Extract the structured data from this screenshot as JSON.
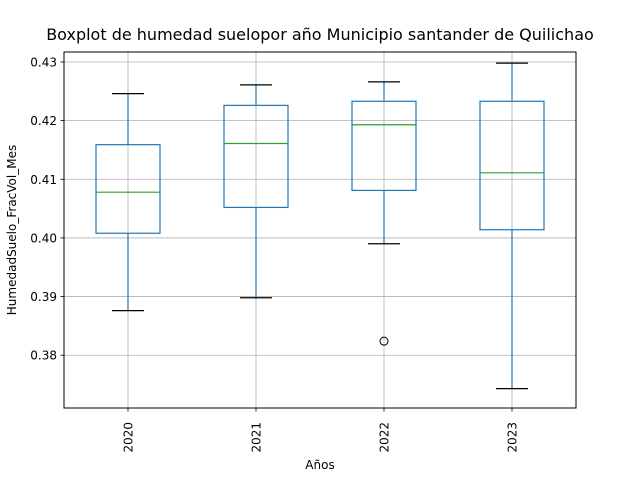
{
  "chart_data": {
    "type": "boxplot",
    "title": "Boxplot de humedad suelopor año Municipio santander de Quilichao",
    "xlabel": "Años",
    "ylabel": "HumedadSuelo_FracVol_Mes",
    "ylim": [
      0.371,
      0.4317
    ],
    "yticks": [
      0.38,
      0.39,
      0.4,
      0.41,
      0.42,
      0.43
    ],
    "ytick_labels": [
      "0.38",
      "0.39",
      "0.40",
      "0.41",
      "0.42",
      "0.43"
    ],
    "grid": true,
    "categories": [
      "2020",
      "2021",
      "2022",
      "2023"
    ],
    "boxes": [
      {
        "category": "2020",
        "whisker_low": 0.3876,
        "q1": 0.4008,
        "median": 0.4078,
        "q3": 0.4159,
        "whisker_high": 0.4246,
        "outliers": []
      },
      {
        "category": "2021",
        "whisker_low": 0.3898,
        "q1": 0.4052,
        "median": 0.4161,
        "q3": 0.4226,
        "whisker_high": 0.4261,
        "outliers": []
      },
      {
        "category": "2022",
        "whisker_low": 0.399,
        "q1": 0.4081,
        "median": 0.4193,
        "q3": 0.4233,
        "whisker_high": 0.4266,
        "outliers": [
          0.3824
        ]
      },
      {
        "category": "2023",
        "whisker_low": 0.3743,
        "q1": 0.4014,
        "median": 0.4111,
        "q3": 0.4233,
        "whisker_high": 0.4298,
        "outliers": []
      }
    ],
    "colors": {
      "box": "#1f77b4",
      "median": "#2ca02c",
      "whisker_cap": "#000000",
      "grid": "#b0b0b0"
    }
  }
}
